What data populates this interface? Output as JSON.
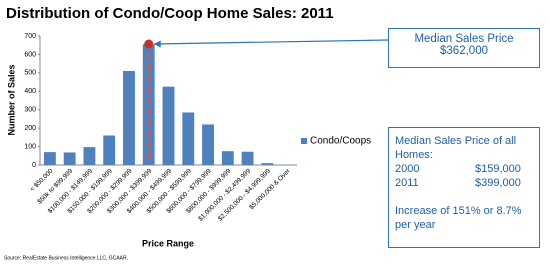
{
  "chart_data": {
    "type": "bar",
    "title": "Distribution of Condo/Coop Home Sales: 2011",
    "x_label": "Price Range",
    "y_label": "Number of Sales",
    "categories": [
      "< $50,000",
      "$50k to $99,999",
      "$100,000 - $149,999",
      "$150,000 - $199,999",
      "$200,000 - $299,999",
      "$300,000 - $399,999",
      "$400,000 - $499,999",
      "$500,000 - $599,999",
      "$600,000 - $799,999",
      "$800,000 - $999,999",
      "$1,000,000 - $2,499,999",
      "$2,500,000 - $4,999,999",
      "$5,000,000 & Over"
    ],
    "series": [
      {
        "name": "Condo/Coops",
        "color": "#4f81bd",
        "values": [
          70,
          68,
          97,
          160,
          510,
          655,
          425,
          285,
          220,
          75,
          72,
          10,
          2
        ]
      }
    ],
    "ylim": [
      0,
      700
    ],
    "yticks": [
      0,
      100,
      200,
      300,
      400,
      500,
      600,
      700
    ],
    "grid": false,
    "legend": "right"
  },
  "median_box": {
    "title": "Median Sales Price",
    "value": "$362,000"
  },
  "summary_box": {
    "title": "Median Sales Price of all Homes:",
    "rows": [
      [
        "2000",
        "$159,000"
      ],
      [
        "2011",
        "$399,000"
      ]
    ],
    "note": "Increase of 151% or 8.7% per year"
  },
  "source": "Source: RealEstate Business Intelligence LLC, GCAAR."
}
